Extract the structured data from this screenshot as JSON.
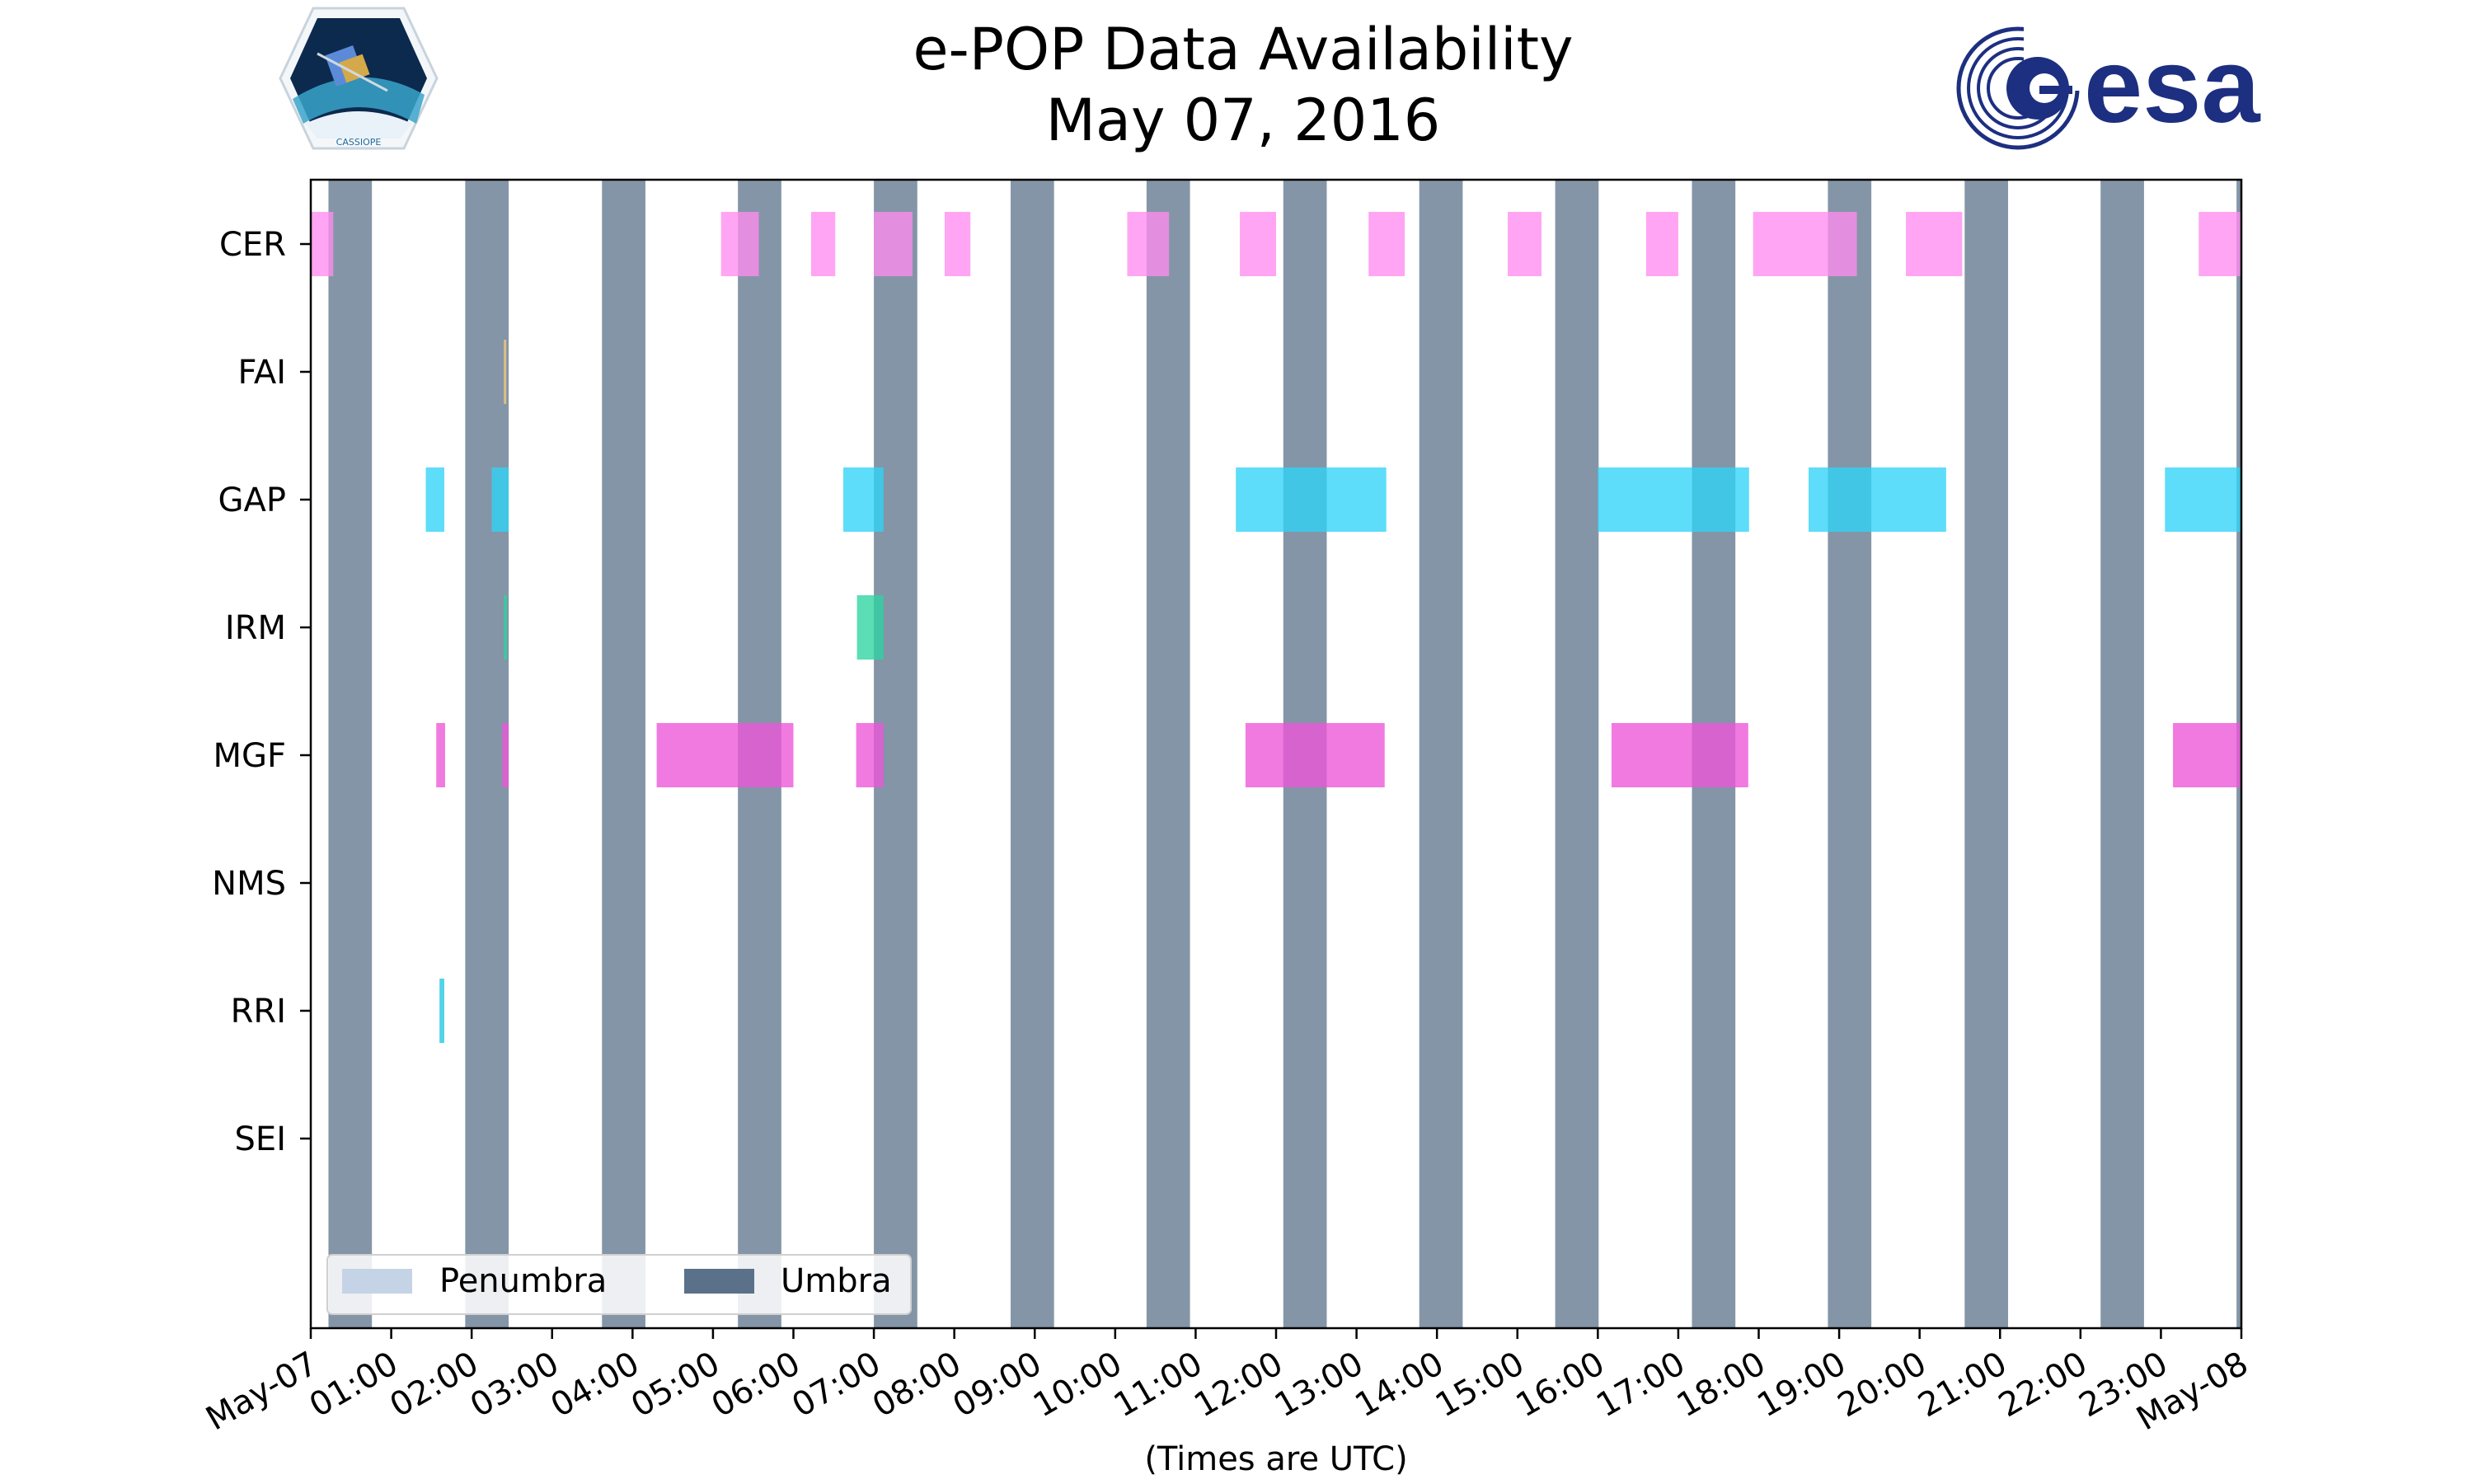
{
  "chart_data": {
    "type": "timeline",
    "title": "e-POP Data Availability",
    "subtitle": "May 07, 2016",
    "xlabel": "(Times are UTC)",
    "x_unit": "hours",
    "xlim": [
      0,
      24
    ],
    "x_tick_labels": [
      "May-07",
      "01:00",
      "02:00",
      "03:00",
      "04:00",
      "05:00",
      "06:00",
      "07:00",
      "08:00",
      "09:00",
      "10:00",
      "11:00",
      "12:00",
      "13:00",
      "14:00",
      "15:00",
      "16:00",
      "17:00",
      "18:00",
      "19:00",
      "20:00",
      "21:00",
      "22:00",
      "23:00",
      "May-08"
    ],
    "instruments": [
      "CER",
      "FAI",
      "GAP",
      "IRM",
      "MGF",
      "NMS",
      "RRI",
      "SEI"
    ],
    "legend": {
      "position": "lower-left",
      "entries": [
        {
          "label": "Penumbra",
          "color": "#c5d3e6"
        },
        {
          "label": "Umbra",
          "color": "#5b7189"
        }
      ]
    },
    "umbra_intervals": [
      [
        0.22,
        0.76
      ],
      [
        1.92,
        2.46
      ],
      [
        3.62,
        4.16
      ],
      [
        5.31,
        5.85
      ],
      [
        7.0,
        7.54
      ],
      [
        8.7,
        9.24
      ],
      [
        10.39,
        10.93
      ],
      [
        12.09,
        12.63
      ],
      [
        13.78,
        14.32
      ],
      [
        15.47,
        16.01
      ],
      [
        17.17,
        17.71
      ],
      [
        18.86,
        19.4
      ],
      [
        20.56,
        21.1
      ],
      [
        22.25,
        22.79
      ],
      [
        23.94,
        24.0
      ]
    ],
    "series": [
      {
        "name": "CER",
        "color": "#ff8cef",
        "intervals": [
          [
            0.0,
            0.28
          ],
          [
            5.1,
            5.57
          ],
          [
            6.22,
            6.52
          ],
          [
            7.0,
            7.48
          ],
          [
            7.88,
            8.2
          ],
          [
            10.15,
            10.67
          ],
          [
            11.55,
            12.0
          ],
          [
            13.15,
            13.6
          ],
          [
            14.88,
            15.3
          ],
          [
            16.6,
            17.0
          ],
          [
            17.93,
            19.22
          ],
          [
            19.83,
            20.53
          ],
          [
            23.47,
            24.0
          ]
        ]
      },
      {
        "name": "FAI",
        "color": "#f5c97a",
        "intervals": [
          [
            2.4,
            2.43
          ]
        ]
      },
      {
        "name": "GAP",
        "color": "#2fd3f7",
        "intervals": [
          [
            1.43,
            1.66
          ],
          [
            2.25,
            2.46
          ],
          [
            6.62,
            7.12
          ],
          [
            11.5,
            13.37
          ],
          [
            16.0,
            17.88
          ],
          [
            18.62,
            20.33
          ],
          [
            23.05,
            24.0
          ]
        ]
      },
      {
        "name": "IRM",
        "color": "#2dd4a0",
        "intervals": [
          [
            2.4,
            2.44
          ],
          [
            6.79,
            7.12
          ]
        ]
      },
      {
        "name": "MGF",
        "color": "#ed55d9",
        "intervals": [
          [
            1.56,
            1.67
          ],
          [
            2.38,
            2.46
          ],
          [
            4.3,
            6.0
          ],
          [
            6.78,
            7.12
          ],
          [
            11.62,
            13.35
          ],
          [
            16.17,
            17.87
          ],
          [
            23.15,
            24.0
          ]
        ]
      },
      {
        "name": "NMS",
        "color": "#bbbbbb",
        "intervals": []
      },
      {
        "name": "RRI",
        "color": "#22c6e0",
        "intervals": [
          [
            1.6,
            1.66
          ]
        ]
      },
      {
        "name": "SEI",
        "color": "#bbbbbb",
        "intervals": []
      }
    ]
  },
  "colors": {
    "axis": "#000000",
    "background": "#ffffff",
    "cassiope_logo_bg": "#0c2a4e",
    "esa_logo": "#1d2f80"
  },
  "logos": {
    "left": {
      "icon": "cassiope-mission-logo",
      "text": "CASSIOPE"
    },
    "right": {
      "icon": "esa-logo",
      "text": "esa"
    }
  }
}
